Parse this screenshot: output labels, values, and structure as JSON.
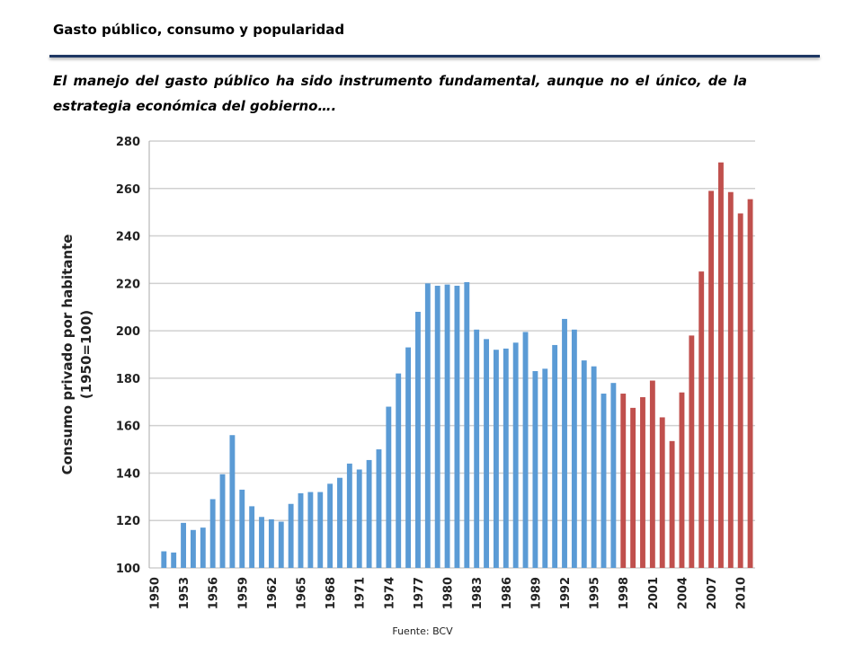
{
  "title": "Gasto público, consumo y popularidad",
  "subtitle": "El manejo del gasto público ha sido instrumento fundamental, aunque no el único, de la estrategia económica del gobierno….",
  "source": "Fuente: BCV",
  "chart_data": {
    "type": "bar",
    "y_label": [
      "Consumo privado por habitante",
      "(1950=100)"
    ],
    "categories": [
      "1950",
      null,
      null,
      "1953",
      null,
      null,
      "1956",
      null,
      null,
      "1959",
      null,
      null,
      "1962",
      null,
      null,
      "1965",
      null,
      null,
      "1968",
      null,
      null,
      "1971",
      null,
      null,
      "1974",
      null,
      null,
      "1977",
      null,
      null,
      "1980",
      null,
      null,
      "1983",
      null,
      null,
      "1986",
      null,
      null,
      "1989",
      null,
      null,
      "1992",
      null,
      null,
      "1995",
      null,
      null,
      "1998",
      null,
      null,
      "2001",
      null,
      null,
      "2004",
      null,
      null,
      "2007",
      null,
      null,
      "2010",
      null
    ],
    "values": [
      100,
      107,
      106.5,
      119,
      116,
      117,
      129,
      139.5,
      156,
      133,
      126,
      121.5,
      120.5,
      119.5,
      127,
      131.5,
      132,
      132,
      135.5,
      138,
      144,
      141.5,
      145.5,
      150,
      168,
      182,
      193,
      208,
      220,
      219,
      219.5,
      219,
      220.5,
      200.5,
      196.5,
      192,
      192.5,
      195,
      199.5,
      183,
      184,
      194,
      205,
      200.5,
      187.5,
      185,
      173.5,
      178,
      173.5,
      167.5,
      172,
      179,
      163.5,
      153.5,
      174,
      198,
      225,
      259,
      271,
      258.5,
      249.5,
      255.5
    ],
    "colors": [
      "#5b9bd5",
      "#5b9bd5",
      "#5b9bd5",
      "#5b9bd5",
      "#5b9bd5",
      "#5b9bd5",
      "#5b9bd5",
      "#5b9bd5",
      "#5b9bd5",
      "#5b9bd5",
      "#5b9bd5",
      "#5b9bd5",
      "#5b9bd5",
      "#5b9bd5",
      "#5b9bd5",
      "#5b9bd5",
      "#5b9bd5",
      "#5b9bd5",
      "#5b9bd5",
      "#5b9bd5",
      "#5b9bd5",
      "#5b9bd5",
      "#5b9bd5",
      "#5b9bd5",
      "#5b9bd5",
      "#5b9bd5",
      "#5b9bd5",
      "#5b9bd5",
      "#5b9bd5",
      "#5b9bd5",
      "#5b9bd5",
      "#5b9bd5",
      "#5b9bd5",
      "#5b9bd5",
      "#5b9bd5",
      "#5b9bd5",
      "#5b9bd5",
      "#5b9bd5",
      "#5b9bd5",
      "#5b9bd5",
      "#5b9bd5",
      "#5b9bd5",
      "#5b9bd5",
      "#5b9bd5",
      "#5b9bd5",
      "#5b9bd5",
      "#5b9bd5",
      "#5b9bd5",
      "#c0504d",
      "#c0504d",
      "#c0504d",
      "#c0504d",
      "#c0504d",
      "#c0504d",
      "#c0504d",
      "#c0504d",
      "#c0504d",
      "#c0504d",
      "#c0504d",
      "#c0504d",
      "#c0504d",
      "#c0504d"
    ],
    "ylim": [
      100,
      280
    ],
    "yticks": [
      100,
      120,
      140,
      160,
      180,
      200,
      220,
      240,
      260,
      280
    ],
    "grid": true
  }
}
